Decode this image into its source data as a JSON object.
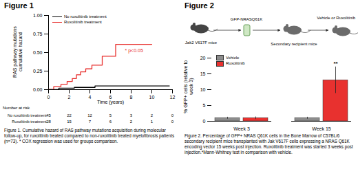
{
  "chart_data": [
    {
      "type": "line",
      "title": "Figure 1",
      "xlabel": "Time (years)",
      "ylabel": "RAS pathway mutations cumulative hazard",
      "xlim": [
        0,
        12
      ],
      "xticks": [
        0,
        2,
        4,
        6,
        8,
        10,
        12
      ],
      "ylim": [
        0,
        1
      ],
      "yticks": [
        {
          "value": 0,
          "label": "0.00"
        },
        {
          "value": 0.25,
          "label": "0.25"
        },
        {
          "value": 0.5,
          "label": "0.50"
        },
        {
          "value": 0.75,
          "label": "0.75"
        },
        {
          "value": 1,
          "label": "1.00"
        }
      ],
      "line_style": "step",
      "legend": "top-left",
      "series": [
        {
          "name": "No ruxolitinib treatment",
          "color": "#000000",
          "x": [
            0,
            1,
            2.5,
            4.5,
            11.7
          ],
          "values": [
            0,
            0.02,
            0.03,
            0.05,
            0.05
          ]
        },
        {
          "name": "Ruxolitinib treatment",
          "color": "#e8312f",
          "x": [
            0,
            0.5,
            1.2,
            1.8,
            2.3,
            2.7,
            3.1,
            3.6,
            4.2,
            5.2,
            6.5,
            10
          ],
          "values": [
            0,
            0.04,
            0.07,
            0.11,
            0.15,
            0.2,
            0.24,
            0.28,
            0.33,
            0.45,
            0.61,
            0.61
          ]
        }
      ],
      "annotations": [
        {
          "text": "* p<0.05",
          "x": 7.4,
          "y": 0.53,
          "color": "#e8312f"
        }
      ],
      "at_risk": {
        "title": "Number at risk",
        "x": [
          0,
          2,
          4,
          6,
          8,
          10,
          12
        ],
        "series": [
          {
            "name": "No ruxolitinib treatment",
            "values": [
              45,
              22,
              12,
              5,
              3,
              2,
              0
            ]
          },
          {
            "name": "Ruxolitinib treatment",
            "values": [
              28,
              15,
              7,
              6,
              2,
              1,
              0
            ]
          }
        ]
      },
      "caption": "Figure 1. Cumulative hazard of RAS pathway mutations acquisition during molecular follow-up, for ruxolitinib treated compared to non-ruxolitinib treated myelofibrosis patients (n=73). * COX regression was used for groups comparison."
    },
    {
      "type": "bar",
      "title": "Figure 2",
      "ylabel": "% GFP+ cells (relative to week 3)",
      "categories": [
        "Week 3",
        "Week 15"
      ],
      "ylim": [
        0,
        20
      ],
      "yticks": [
        0,
        5,
        10,
        15,
        20
      ],
      "legend": "top-left",
      "series": [
        {
          "name": "Vehicle",
          "color": "#8c8c8c",
          "values": [
            1,
            1
          ],
          "errors": [
            0.3,
            0.3
          ]
        },
        {
          "name": "Ruxolitinib",
          "color": "#e8312f",
          "values": [
            1,
            13
          ],
          "errors": [
            0.4,
            4.2
          ]
        }
      ],
      "annotations": [
        {
          "text": "**",
          "category": "Week 15",
          "series": "Ruxolitinib",
          "y": 18.3
        }
      ],
      "caption": "Figure 2. Percentage of GFP+ NRAS Q61K cells in the Bone Marrow of C57BL/6 secondary recipient mice transplanted with Jak V617F cells expressing a NRAS Q61K encoding vector 15 weeks post injection. Ruxolitinib treatment was started 3 weeks post injection.*Mann-Whitney test in comparison with vehicle."
    }
  ],
  "schematic": {
    "donor": "Jak2 V617F mice",
    "vector": "GFP-NRASQ61K",
    "recipient": "Secondary recipient mice",
    "treatment": "Vehicle or Ruxolitinib"
  }
}
